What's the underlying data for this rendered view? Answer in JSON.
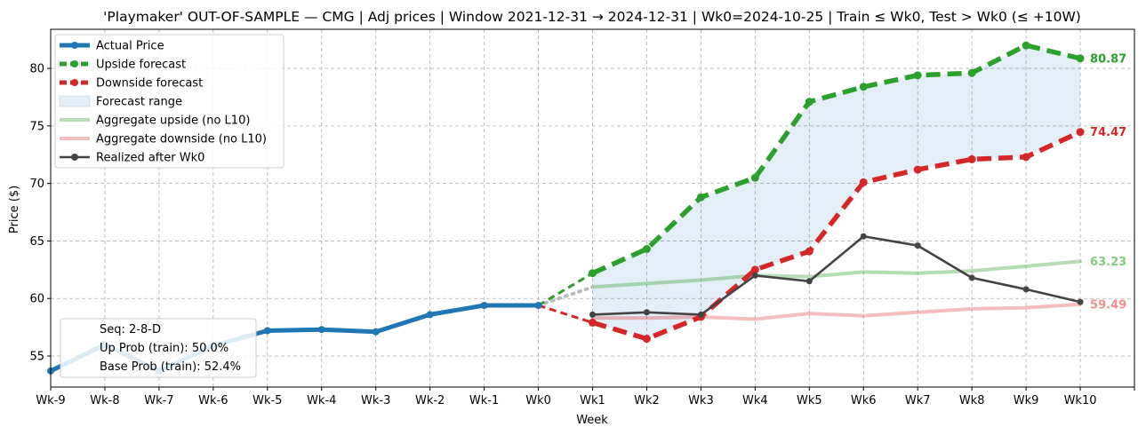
{
  "chart_data": {
    "type": "line",
    "title": "'Playmaker' OUT-OF-SAMPLE — CMG  |  Adj prices  |  Window 2021-12-31 → 2024-12-31  |  Wk0=2024-10-25  |  Train ≤ Wk0, Test > Wk0 (≤ +10W)",
    "xlabel": "Week",
    "ylabel": "Price ($)",
    "categories": [
      "Wk-9",
      "Wk-8",
      "Wk-7",
      "Wk-6",
      "Wk-5",
      "Wk-4",
      "Wk-3",
      "Wk-2",
      "Wk-1",
      "Wk0",
      "Wk1",
      "Wk2",
      "Wk3",
      "Wk4",
      "Wk5",
      "Wk6",
      "Wk7",
      "Wk8",
      "Wk9",
      "Wk10"
    ],
    "xlim": [
      -9,
      11
    ],
    "ylim": [
      52.3,
      83.4
    ],
    "yticks": [
      55,
      60,
      65,
      70,
      75,
      80
    ],
    "grid": true,
    "legend_position": "top-left",
    "series": [
      {
        "name": "Actual Price",
        "color": "#1f77b4",
        "style": "solid",
        "x": [
          -9,
          -8,
          -7,
          -6,
          -5,
          -4,
          -3,
          -2,
          -1,
          0
        ],
        "values": [
          53.7,
          56.0,
          53.7,
          55.9,
          57.2,
          57.3,
          57.1,
          58.6,
          59.4,
          59.4
        ]
      },
      {
        "name": "Upside forecast",
        "color": "#2ca02c",
        "style": "dashed",
        "x": [
          0,
          1,
          2,
          3,
          4,
          5,
          6,
          7,
          8,
          9,
          10
        ],
        "values": [
          59.4,
          62.2,
          64.3,
          68.8,
          70.5,
          77.1,
          78.4,
          79.4,
          79.6,
          82.0,
          80.87
        ]
      },
      {
        "name": "Downside forecast",
        "color": "#d62728",
        "style": "dashed",
        "x": [
          0,
          1,
          2,
          3,
          4,
          5,
          6,
          7,
          8,
          9,
          10
        ],
        "values": [
          59.4,
          57.9,
          56.5,
          58.4,
          62.5,
          64.1,
          70.1,
          71.2,
          72.1,
          72.3,
          74.47
        ]
      },
      {
        "name": "Aggregate upside (no L10)",
        "color": "#2ca02c",
        "style": "faint",
        "x": [
          1,
          2,
          3,
          4,
          5,
          6,
          7,
          8,
          9,
          10
        ],
        "values": [
          61.0,
          61.3,
          61.6,
          62.0,
          61.9,
          62.3,
          62.2,
          62.4,
          62.8,
          63.23
        ]
      },
      {
        "name": "Aggregate downside (no L10)",
        "color": "#d62728",
        "style": "faint",
        "x": [
          1,
          2,
          3,
          4,
          5,
          6,
          7,
          8,
          9,
          10
        ],
        "values": [
          58.3,
          58.3,
          58.4,
          58.2,
          58.7,
          58.5,
          58.8,
          59.1,
          59.2,
          59.49
        ]
      },
      {
        "name": "Realized after Wk0",
        "color": "#444444",
        "style": "solid",
        "x": [
          1,
          2,
          3,
          4,
          5,
          6,
          7,
          8,
          9,
          10
        ],
        "values": [
          58.6,
          58.8,
          58.6,
          62.0,
          61.5,
          65.4,
          64.6,
          61.8,
          60.8,
          59.7
        ]
      }
    ],
    "forecast_range_label": "Forecast range",
    "end_labels": [
      {
        "text": "80.87",
        "value": 80.87,
        "color": "#2ca02c"
      },
      {
        "text": "74.47",
        "value": 74.47,
        "color": "#d62728"
      },
      {
        "text": "63.23",
        "value": 63.23,
        "color": "#7fcf7f"
      },
      {
        "text": "59.49",
        "value": 59.49,
        "color": "#ec8f8f"
      }
    ],
    "info_box": [
      "Seq: 2-8-D",
      "Up Prob (train): 50.0%",
      "Base Prob (train): 52.4%"
    ]
  }
}
